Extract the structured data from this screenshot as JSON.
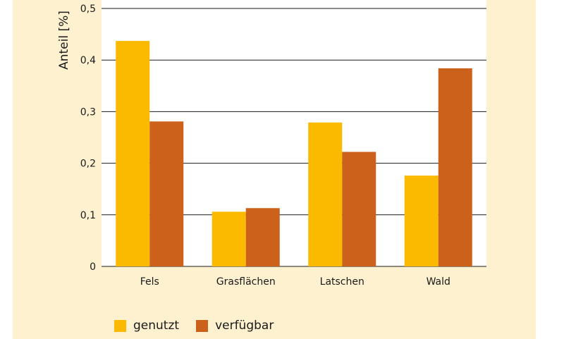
{
  "colors": {
    "panel_background": "#fdf1cf",
    "plot_background": "#ffffff",
    "series_1": "#fbb900",
    "series_2": "#cc611c",
    "grid": "#1a1a1a"
  },
  "chart_data": {
    "type": "bar",
    "title": "",
    "xlabel": "",
    "ylabel": "Anteil [%]",
    "ylim": [
      0,
      0.5
    ],
    "yticks": [
      0,
      0.1,
      0.2,
      0.3,
      0.4,
      0.5
    ],
    "ytick_labels": [
      "0",
      "0,1",
      "0,2",
      "0,3",
      "0,4",
      "0,5"
    ],
    "categories": [
      "Fels",
      "Grasflächen",
      "Latschen",
      "Wald"
    ],
    "series": [
      {
        "name": "genutzt",
        "values": [
          0.437,
          0.106,
          0.279,
          0.176
        ]
      },
      {
        "name": "verfügbar",
        "values": [
          0.281,
          0.113,
          0.222,
          0.384
        ]
      }
    ],
    "grid": true,
    "legend_position": "bottom-left"
  }
}
